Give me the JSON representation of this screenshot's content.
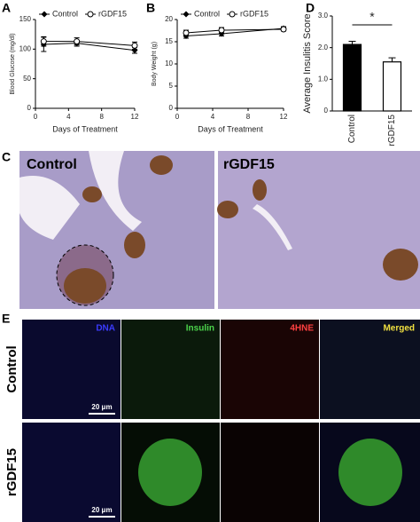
{
  "figure": {
    "panel_labels": [
      "A",
      "B",
      "C",
      "D",
      "E"
    ],
    "histology": {
      "labels": [
        "Control",
        "rGDF15"
      ]
    },
    "fluorescence": {
      "channels": [
        "DNA",
        "Insulin",
        "4HNE",
        "Merged"
      ],
      "rows": [
        "Control",
        "rGDF15"
      ],
      "scale_bar": "20 μm"
    }
  },
  "chart_data": [
    {
      "type": "line",
      "y_label": "Blood Glucose (mg/dl)",
      "x_label": "Days of Treatment",
      "x": [
        1,
        5,
        12
      ],
      "xlim": [
        0,
        12
      ],
      "xticks": [
        0,
        4,
        8,
        12
      ],
      "ylim": [
        0,
        150
      ],
      "yticks": [
        0,
        50,
        100,
        150
      ],
      "legend": "top",
      "series": [
        {
          "name": "Control",
          "color": "#000000",
          "marker": "diamond",
          "values": [
            108,
            110,
            98
          ],
          "errors": [
            12,
            5,
            5
          ]
        },
        {
          "name": "rGDF15",
          "color": "#000000",
          "marker": "circle-open",
          "values": [
            113,
            113,
            106
          ],
          "errors": [
            8,
            6,
            6
          ]
        }
      ]
    },
    {
      "type": "line",
      "y_label": "Body Weight (g)",
      "x_label": "Days of Treatment",
      "x": [
        1,
        5,
        12
      ],
      "xlim": [
        0,
        12
      ],
      "xticks": [
        0,
        4,
        8,
        12
      ],
      "ylim": [
        0,
        20
      ],
      "yticks": [
        0,
        5,
        10,
        15,
        20
      ],
      "legend": "top",
      "series": [
        {
          "name": "Control",
          "color": "#000000",
          "marker": "diamond",
          "values": [
            16.3,
            16.8,
            18
          ],
          "errors": [
            0.5,
            0.5,
            0.4
          ]
        },
        {
          "name": "rGDF15",
          "color": "#000000",
          "marker": "circle-open",
          "values": [
            17,
            17.6,
            17.8
          ],
          "errors": [
            0.6,
            0.6,
            0.4
          ]
        }
      ]
    },
    {
      "type": "bar",
      "y_label": "Average Insulitis Score",
      "annotation": "*",
      "categories": [
        "Control",
        "rGDF15"
      ],
      "values": [
        2.1,
        1.55
      ],
      "errors": [
        0.1,
        0.13
      ],
      "colors": [
        "#000000",
        "#ffffff"
      ],
      "ylim": [
        0,
        3
      ],
      "yticks": [
        0,
        {
          "value": 1,
          "label": "1.0"
        },
        {
          "value": 2,
          "label": "2.0"
        },
        {
          "value": 3,
          "label": "3.0"
        }
      ]
    }
  ]
}
